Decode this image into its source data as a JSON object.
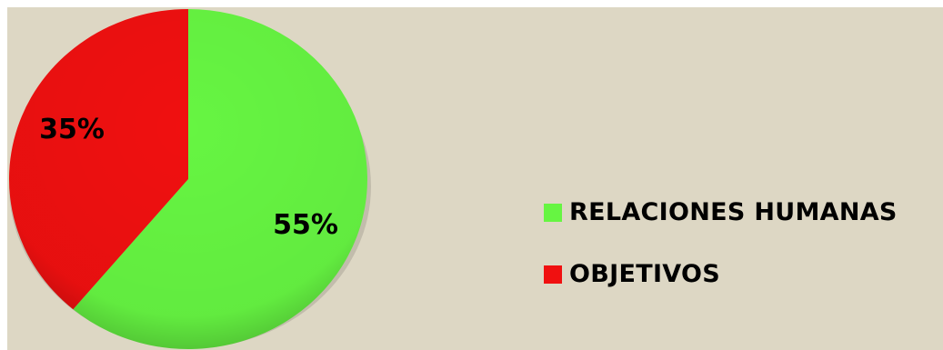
{
  "chart_data": {
    "type": "pie",
    "title": "",
    "slices": [
      {
        "label": "RELACIONES HUMANAS",
        "value": 55,
        "display": "55%",
        "color": "#66f542"
      },
      {
        "label": "OBJETIVOS",
        "value": 35,
        "display": "35%",
        "color": "#f01010"
      }
    ],
    "legend_position": "right"
  }
}
